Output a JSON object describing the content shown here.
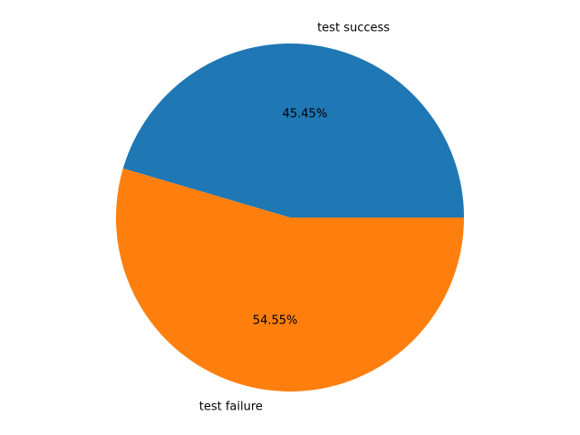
{
  "chart_data": {
    "type": "pie",
    "title": "",
    "start_angle_deg": 0,
    "direction": "counterclockwise",
    "slices": [
      {
        "label": "test success",
        "value": 45.45,
        "pct_label": "45.45%",
        "color": "#1f77b4"
      },
      {
        "label": "test failure",
        "value": 54.55,
        "pct_label": "54.55%",
        "color": "#ff7f0e"
      }
    ]
  }
}
